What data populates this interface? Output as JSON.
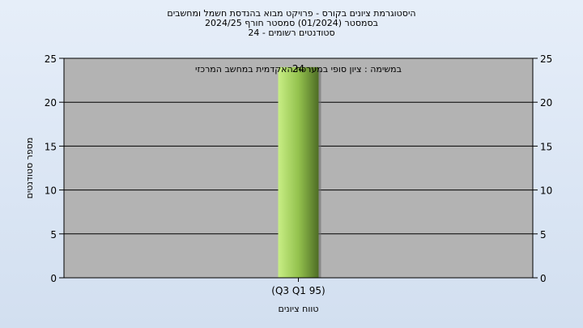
{
  "window": {
    "title_lines": [
      "היסטוגרמת ציונים בקורס - פרויקט מבוא בהנדסת חשמל ומחשבים",
      "בסמסטר  (01/2024)  סמסטר חורף  2024/25",
      "סטודנטים רשומים - 24"
    ]
  },
  "chart_data": {
    "type": "bar",
    "title": "היסטוגרמת ציונים בקורס - פרויקט מבוא בהנדסת חשמל ומחשבים",
    "subtitle": "בסמסטר  (01/2024)  סמסטר חורף  2024/25",
    "caption": "סטודנטים רשומים - 24",
    "annotation": "במשימה : ציון סופי במערכת האקדמית במחשב המרכזי",
    "categories": [
      "(Q3 Q1 95)"
    ],
    "values": [
      24
    ],
    "data_labels": [
      "24"
    ],
    "xlabel": "טווח ציונים",
    "ylabel": "מספר סטודנטים",
    "ylim": [
      0,
      25
    ],
    "yticks": [
      0,
      5,
      10,
      15,
      20,
      25
    ],
    "right_axis": true,
    "grid": true,
    "colors": {
      "plot_background": "#b3b3b3",
      "bar_light": "#c8ee85",
      "bar_mid": "#94c24e",
      "bar_dark": "#4e6d25",
      "grid": "#000000"
    }
  }
}
